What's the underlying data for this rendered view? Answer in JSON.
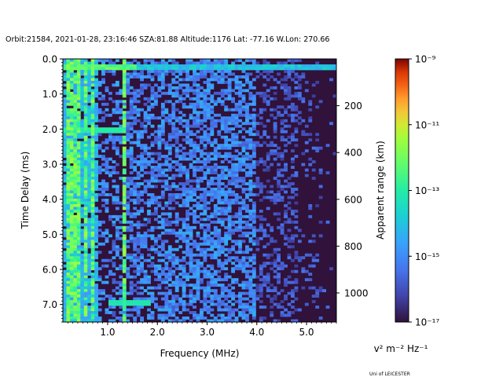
{
  "chart_data": {
    "type": "heatmap",
    "title": "Orbit:21584, 2021-01-28, 23:16:46 SZA:81.88 Altitude:1176 Lat: -77.16 W.Lon: 270.66",
    "xlabel": "Frequency (MHz)",
    "ylabel": "Time Delay (ms)",
    "y2label": "Apparent range (km)",
    "xlim": [
      0.1,
      5.6
    ],
    "ylim": [
      7.5,
      0.0
    ],
    "x_ticks": [
      1.0,
      2.0,
      3.0,
      4.0,
      5.0
    ],
    "x_tick_labels": [
      "1.0",
      "2.0",
      "3.0",
      "4.0",
      "5.0"
    ],
    "y_ticks": [
      0.0,
      1.0,
      2.0,
      3.0,
      4.0,
      5.0,
      6.0,
      7.0
    ],
    "y_tick_labels": [
      "0.0",
      "1.0",
      "2.0",
      "3.0",
      "4.0",
      "5.0",
      "6.0",
      "7.0"
    ],
    "y2_ticks": [
      200,
      400,
      600,
      800,
      1000
    ],
    "y2_tick_labels": [
      "200",
      "400",
      "600",
      "800",
      "1000"
    ],
    "colorbar": {
      "label": "v² m⁻² Hz⁻¹",
      "scale": "log",
      "range": [
        1e-17,
        1e-09
      ],
      "tick_values": [
        1e-17,
        1e-15,
        1e-13,
        1e-11,
        1e-09
      ],
      "tick_labels": [
        "10⁻¹⁷",
        "10⁻¹⁵",
        "10⁻¹³",
        "10⁻¹¹",
        "10⁻⁹"
      ],
      "colormap": "turbo"
    },
    "background_color": "#30123b",
    "grid": false
  },
  "footer": {
    "credit": "Uni of LEICESTER"
  }
}
